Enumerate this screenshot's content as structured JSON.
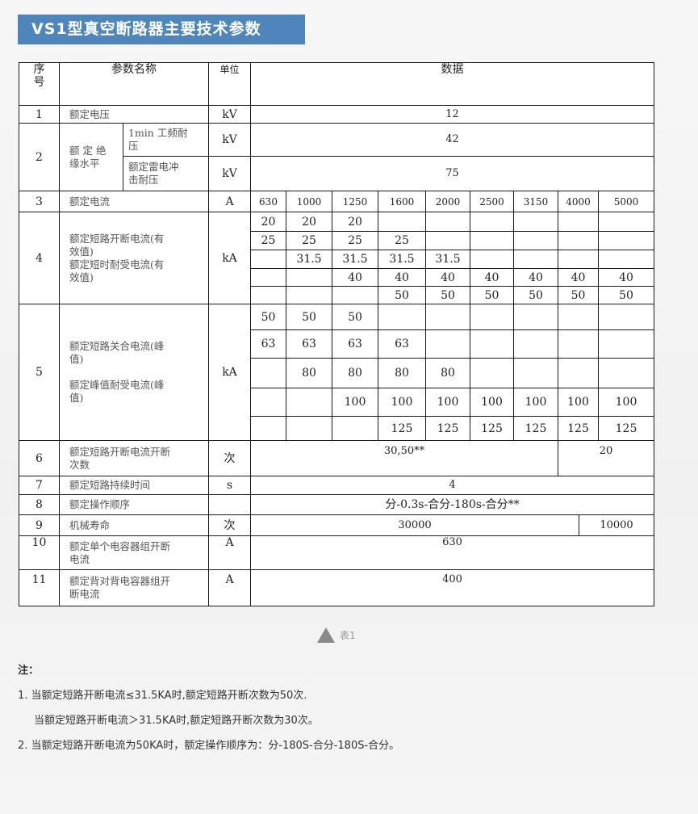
{
  "title": "VS1型真空断路器主要技术参数",
  "table": {
    "header": {
      "seq": "序\n号",
      "name": "参数名称",
      "unit": "单位",
      "data": "数据"
    },
    "row1": {
      "seq": "1",
      "name": "额定电压",
      "unit": "kV",
      "value": "12"
    },
    "row2": {
      "seq": "2",
      "name": "额 定 绝\n缘水平",
      "sub1": {
        "name": "1min 工频耐\n压",
        "unit": "kV",
        "value": "42"
      },
      "sub2": {
        "name": "额定雷电冲\n击耐压",
        "unit": "kV",
        "value": "75"
      }
    },
    "row3": {
      "seq": "3",
      "name": "额定电流",
      "unit": "A",
      "values": [
        "630",
        "1000",
        "1250",
        "1600",
        "2000",
        "2500",
        "3150",
        "4000",
        "5000"
      ]
    },
    "row4": {
      "seq": "4",
      "name": "额定短路开断电流(有\n效值)\n额定短时耐受电流(有\n效值)",
      "unit": "kA",
      "grid": [
        [
          "20",
          "20",
          "20",
          "",
          "",
          "",
          "",
          "",
          ""
        ],
        [
          "25",
          "25",
          "25",
          "25",
          "",
          "",
          "",
          "",
          ""
        ],
        [
          "",
          "31.5",
          "31.5",
          "31.5",
          "31.5",
          "",
          "",
          "",
          ""
        ],
        [
          "",
          "",
          "40",
          "40",
          "40",
          "40",
          "40",
          "40",
          "40"
        ],
        [
          "",
          "",
          "",
          "50",
          "50",
          "50",
          "50",
          "50",
          "50"
        ]
      ]
    },
    "row5": {
      "seq": "5",
      "name": "额定短路关合电流(峰\n值)\n\n额定峰值耐受电流(峰\n值)",
      "unit": "kA",
      "grid": [
        [
          "50",
          "50",
          "50",
          "",
          "",
          "",
          "",
          "",
          ""
        ],
        [
          "63",
          "63",
          "63",
          "63",
          "",
          "",
          "",
          "",
          ""
        ],
        [
          "",
          "80",
          "80",
          "80",
          "80",
          "",
          "",
          "",
          ""
        ],
        [
          "",
          "",
          "100",
          "100",
          "100",
          "100",
          "100",
          "100",
          "100"
        ],
        [
          "",
          "",
          "",
          "125",
          "125",
          "125",
          "125",
          "125",
          "125"
        ]
      ]
    },
    "row6": {
      "seq": "6",
      "name": "额定短路开断电流开断\n次数",
      "unit": "次",
      "value_a": "30,50**",
      "value_b": "20"
    },
    "row7": {
      "seq": "7",
      "name": "额定短路持续时间",
      "unit": "s",
      "value": "4"
    },
    "row8": {
      "seq": "8",
      "name": "额定操作顺序",
      "unit": "",
      "value": "分-0.3s-合分-180s-合分**"
    },
    "row9": {
      "seq": "9",
      "name": "机械寿命",
      "unit": "次",
      "value_a": "30000",
      "value_b": "10000"
    },
    "row10": {
      "seq": "10",
      "name": "额定单个电容器组开断\n电流",
      "unit": "A",
      "value": "630"
    },
    "row11": {
      "seq": "11",
      "name": "额定背对背电容器组开\n断电流",
      "unit": "A",
      "value": "400"
    }
  },
  "caption": {
    "icon": "triangle-up-icon",
    "text": "表1"
  },
  "notes": {
    "heading": "注：",
    "items": [
      "1. 当额定短路开断电流≤31.5KA时,额定短路开断次数为50次.",
      "当额定短路开断电流＞31.5KA时,额定短路开断次数为30次。",
      "2. 当额定短路开断电流为50KA时，额定操作顺序为：分-180S-合分-180S-合分。"
    ]
  }
}
